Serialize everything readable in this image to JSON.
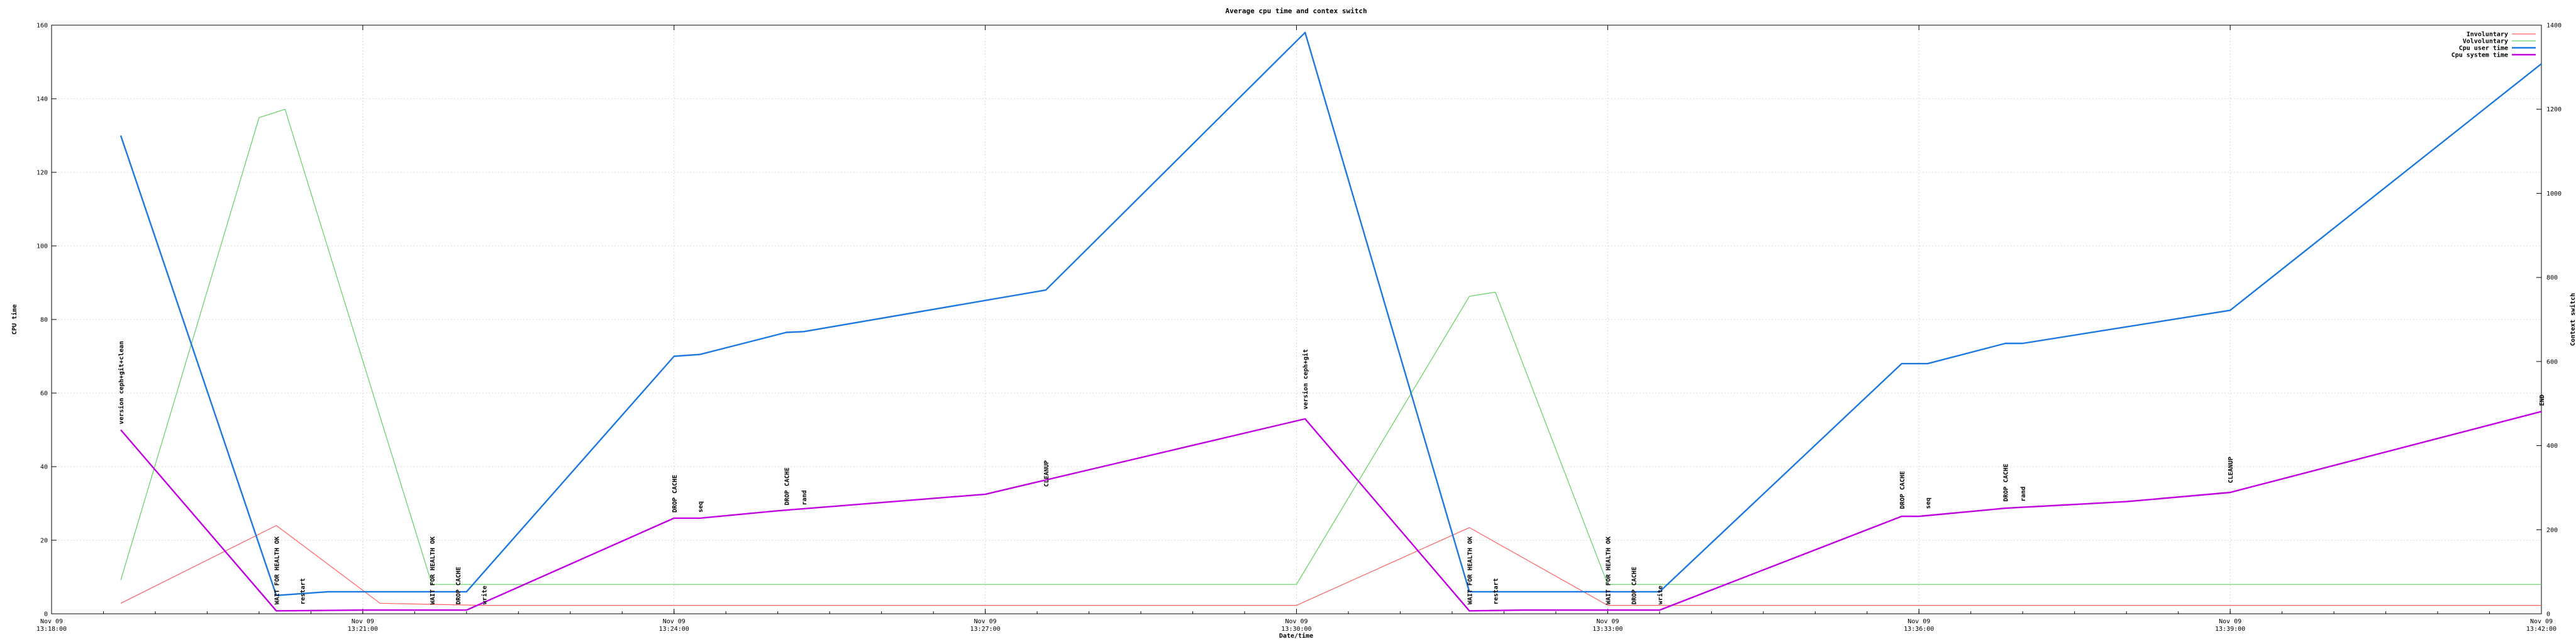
{
  "chart_data": {
    "type": "line",
    "title": "Average cpu time and contex switch",
    "xlabel": "Date/time",
    "ylabel": "CPU time",
    "y2label": "Context switch",
    "x_range": [
      "13:18:00",
      "13:42:00"
    ],
    "ylim": [
      0,
      160
    ],
    "y2lim": [
      0,
      1400
    ],
    "y_ticks": [
      0,
      20,
      40,
      60,
      80,
      100,
      120,
      140,
      160
    ],
    "y2_ticks": [
      0,
      200,
      400,
      600,
      800,
      1000,
      1200,
      1400
    ],
    "x_ticks": [
      {
        "t": "13:18:00",
        "date": "Nov 09",
        "time": "13:18:00"
      },
      {
        "t": "13:21:00",
        "date": "Nov 09",
        "time": "13:21:00"
      },
      {
        "t": "13:24:00",
        "date": "Nov 09",
        "time": "13:24:00"
      },
      {
        "t": "13:27:00",
        "date": "Nov 09",
        "time": "13:27:00"
      },
      {
        "t": "13:30:00",
        "date": "Nov 09",
        "time": "13:30:00"
      },
      {
        "t": "13:33:00",
        "date": "Nov 09",
        "time": "13:33:00"
      },
      {
        "t": "13:36:00",
        "date": "Nov 09",
        "time": "13:36:00"
      },
      {
        "t": "13:39:00",
        "date": "Nov 09",
        "time": "13:39:00"
      },
      {
        "t": "13:42:00",
        "date": "Nov 09",
        "time": "13:42:00"
      }
    ],
    "grid": true,
    "legend_position": "top-right",
    "series": [
      {
        "name": "Involuntary",
        "axis": "right",
        "color": "#ff6060",
        "points": [
          [
            "13:18:40",
            25
          ],
          [
            "13:20:10",
            210
          ],
          [
            "13:21:10",
            25
          ],
          [
            "13:22:10",
            20
          ],
          [
            "13:24:00",
            20
          ],
          [
            "13:25:00",
            20
          ],
          [
            "13:27:00",
            20
          ],
          [
            "13:30:00",
            20
          ],
          [
            "13:31:40",
            205
          ],
          [
            "13:33:00",
            20
          ],
          [
            "13:35:00",
            20
          ],
          [
            "13:38:00",
            20
          ],
          [
            "13:42:00",
            20
          ]
        ]
      },
      {
        "name": "Volvoluntary",
        "axis": "right",
        "color": "#60d060",
        "points": [
          [
            "13:18:40",
            80
          ],
          [
            "13:20:00",
            1180
          ],
          [
            "13:20:15",
            1200
          ],
          [
            "13:21:40",
            70
          ],
          [
            "13:22:10",
            70
          ],
          [
            "13:24:00",
            70
          ],
          [
            "13:27:00",
            70
          ],
          [
            "13:30:00",
            70
          ],
          [
            "13:31:40",
            755
          ],
          [
            "13:31:55",
            765
          ],
          [
            "13:33:00",
            70
          ],
          [
            "13:36:00",
            70
          ],
          [
            "13:42:00",
            70
          ]
        ]
      },
      {
        "name": "Cpu user time",
        "axis": "left",
        "color": "#1a78e0",
        "points": [
          [
            "13:18:40",
            130
          ],
          [
            "13:20:10",
            5
          ],
          [
            "13:20:40",
            6
          ],
          [
            "13:21:40",
            6
          ],
          [
            "13:22:00",
            6
          ],
          [
            "13:24:00",
            70
          ],
          [
            "13:24:15",
            70.5
          ],
          [
            "13:25:05",
            76.5
          ],
          [
            "13:25:15",
            76.7
          ],
          [
            "13:27:35",
            88
          ],
          [
            "13:30:05",
            158
          ],
          [
            "13:31:40",
            6
          ],
          [
            "13:32:10",
            6
          ],
          [
            "13:33:00",
            6
          ],
          [
            "13:33:30",
            6
          ],
          [
            "13:35:50",
            68
          ],
          [
            "13:36:05",
            68
          ],
          [
            "13:36:50",
            73.5
          ],
          [
            "13:37:00",
            73.5
          ],
          [
            "13:39:00",
            82.5
          ],
          [
            "13:42:00",
            149.5
          ]
        ]
      },
      {
        "name": "Cpu system time",
        "axis": "left",
        "color": "#c000e0",
        "points": [
          [
            "13:18:40",
            50
          ],
          [
            "13:20:10",
            0.8
          ],
          [
            "13:21:00",
            1
          ],
          [
            "13:22:00",
            1
          ],
          [
            "13:24:00",
            26
          ],
          [
            "13:24:15",
            26
          ],
          [
            "13:25:00",
            28
          ],
          [
            "13:27:00",
            32.5
          ],
          [
            "13:30:05",
            53
          ],
          [
            "13:31:40",
            0.8
          ],
          [
            "13:32:10",
            1
          ],
          [
            "13:33:30",
            1
          ],
          [
            "13:35:50",
            26.5
          ],
          [
            "13:36:00",
            26.5
          ],
          [
            "13:36:50",
            28.7
          ],
          [
            "13:38:00",
            30.5
          ],
          [
            "13:39:00",
            33
          ],
          [
            "13:42:00",
            55
          ]
        ]
      }
    ],
    "annotations": [
      {
        "text": "version ceph+git+clean",
        "t": "13:18:40",
        "y": 51
      },
      {
        "text": "WAIT FOR HEALTH OK",
        "t": "13:20:10",
        "y": 2
      },
      {
        "text": "restart",
        "t": "13:20:25",
        "y": 2
      },
      {
        "text": "WAIT FOR HEALTH OK",
        "t": "13:21:40",
        "y": 2
      },
      {
        "text": "DROP CACHE",
        "t": "13:21:55",
        "y": 2
      },
      {
        "text": "write",
        "t": "13:22:10",
        "y": 2
      },
      {
        "text": "DROP CACHE",
        "t": "13:24:00",
        "y": 27
      },
      {
        "text": "seq",
        "t": "13:24:15",
        "y": 27
      },
      {
        "text": "DROP CACHE",
        "t": "13:25:05",
        "y": 29
      },
      {
        "text": "rand",
        "t": "13:25:15",
        "y": 29
      },
      {
        "text": "CLEANUP",
        "t": "13:27:35",
        "y": 34
      },
      {
        "text": "version ceph+git",
        "t": "13:30:05",
        "y": 55
      },
      {
        "text": "WAIT FOR HEALTH OK",
        "t": "13:31:40",
        "y": 2
      },
      {
        "text": "restart",
        "t": "13:31:55",
        "y": 2
      },
      {
        "text": "WAIT FOR HEALTH OK",
        "t": "13:33:00",
        "y": 2
      },
      {
        "text": "DROP CACHE",
        "t": "13:33:15",
        "y": 2
      },
      {
        "text": "write",
        "t": "13:33:30",
        "y": 2
      },
      {
        "text": "DROP CACHE",
        "t": "13:35:50",
        "y": 28
      },
      {
        "text": "seq",
        "t": "13:36:05",
        "y": 28
      },
      {
        "text": "DROP CACHE",
        "t": "13:36:50",
        "y": 30
      },
      {
        "text": "rand",
        "t": "13:37:00",
        "y": 30
      },
      {
        "text": "CLEANUP",
        "t": "13:39:00",
        "y": 35
      },
      {
        "text": "END",
        "t": "13:42:00",
        "y": 56
      }
    ]
  }
}
